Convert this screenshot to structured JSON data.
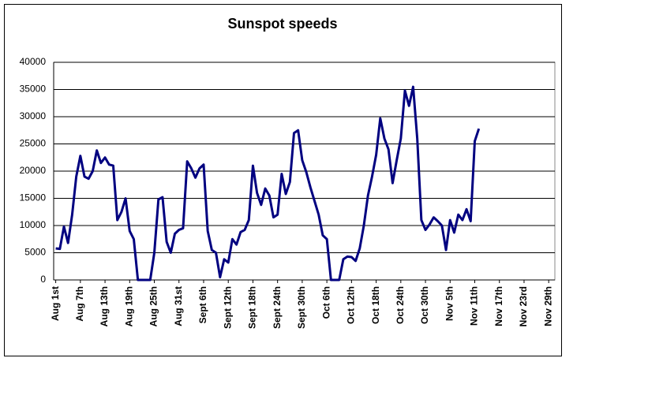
{
  "chart_data": {
    "type": "line",
    "title": "Sunspot speeds",
    "categories": [
      "Aug 1st",
      null,
      null,
      null,
      null,
      null,
      "Aug 7th",
      null,
      null,
      null,
      null,
      null,
      "Aug 13th",
      null,
      null,
      null,
      null,
      null,
      "Aug 19th",
      null,
      null,
      null,
      null,
      null,
      "Aug 25th",
      null,
      null,
      null,
      null,
      null,
      "Aug 31st",
      null,
      null,
      null,
      null,
      null,
      "Sept 6th",
      null,
      null,
      null,
      null,
      null,
      "Sept 12th",
      null,
      null,
      null,
      null,
      null,
      "Sept 18th",
      null,
      null,
      null,
      null,
      null,
      "Sept 24th",
      null,
      null,
      null,
      null,
      null,
      "Sept 30th",
      null,
      null,
      null,
      null,
      null,
      "Oct 6th",
      null,
      null,
      null,
      null,
      null,
      "Oct 12th",
      null,
      null,
      null,
      null,
      null,
      "Oct 18th",
      null,
      null,
      null,
      null,
      null,
      "Oct 24th",
      null,
      null,
      null,
      null,
      null,
      "Oct 30th",
      null,
      null,
      null,
      null,
      null,
      "Nov 5th",
      null,
      null,
      null,
      null,
      null,
      "Nov 11th",
      null,
      null,
      null,
      null,
      null,
      "Nov 17th",
      null,
      null,
      null,
      null,
      null,
      "Nov 23rd",
      null,
      null,
      null,
      null,
      null,
      "Nov 29th",
      null
    ],
    "series": [
      {
        "name": "Sunspot speeds",
        "color": "#000080",
        "values": [
          5800,
          5700,
          9800,
          6800,
          12000,
          19000,
          22800,
          19000,
          18600,
          20000,
          23800,
          21500,
          22500,
          21200,
          21000,
          11000,
          12500,
          15000,
          9000,
          7500,
          0,
          0,
          0,
          0,
          5000,
          14800,
          15200,
          7000,
          5000,
          8500,
          9200,
          9500,
          21800,
          20500,
          18800,
          20500,
          21200,
          9000,
          5500,
          5000,
          500,
          3800,
          3200,
          7500,
          6500,
          8800,
          9200,
          11000,
          21000,
          16000,
          13800,
          16800,
          15500,
          11500,
          12000,
          19500,
          15800,
          18000,
          27000,
          27500,
          22000,
          19800,
          17000,
          14500,
          12000,
          8200,
          7500,
          0,
          0,
          0,
          3800,
          4300,
          4200,
          3500,
          5800,
          10000,
          15500,
          19000,
          23000,
          29700,
          26000,
          24000,
          17800,
          22000,
          26000,
          34800,
          32000,
          35500,
          26000,
          11000,
          9200,
          10200,
          11500,
          10800,
          10000,
          5500,
          11000,
          8700,
          12000,
          11000,
          13000,
          10800,
          25500,
          27800,
          null,
          null,
          null,
          null,
          null,
          null,
          null,
          null,
          null,
          null,
          null,
          null,
          null,
          null,
          null,
          null,
          null,
          null
        ]
      }
    ],
    "ylim": [
      0,
      40000
    ],
    "yticks": [
      0,
      5000,
      10000,
      15000,
      20000,
      25000,
      30000,
      35000,
      40000
    ],
    "grid": true
  }
}
